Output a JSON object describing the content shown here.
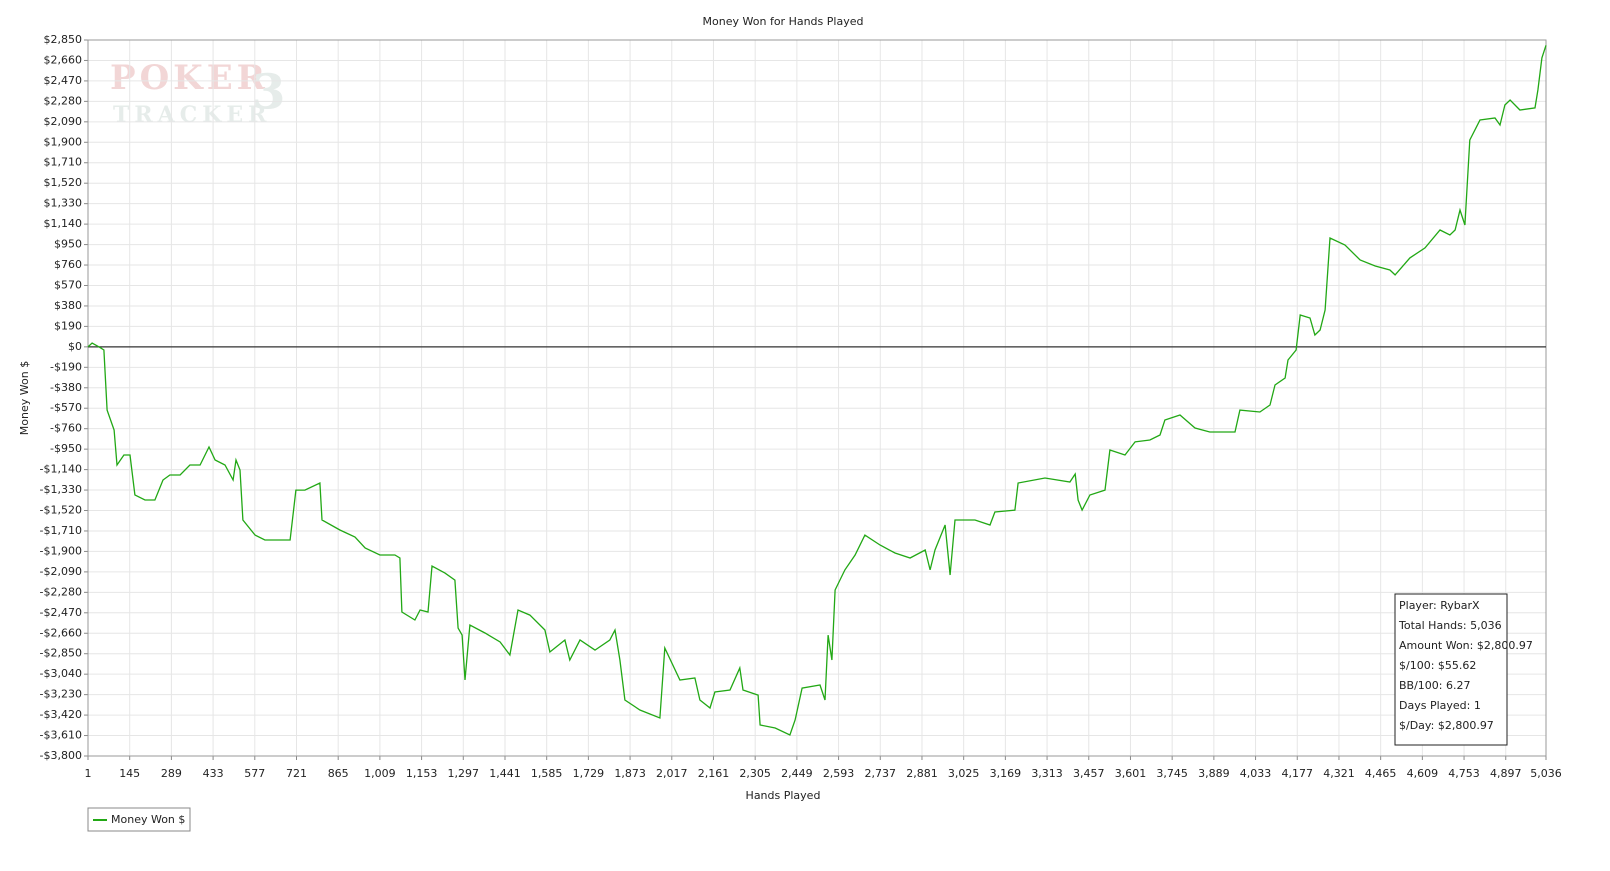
{
  "chart_data": {
    "type": "line",
    "title": "Money Won for Hands Played",
    "x_label": "Hands Played",
    "y_label": "Money Won $",
    "watermark": [
      "POKER",
      "TRACKER",
      "3"
    ],
    "grid": true,
    "legend": "bottom-left",
    "stats": [
      "Player: RybarX",
      "Total Hands: 5,036",
      "Amount Won: $2,800.97",
      "$/100: $55.62",
      "BB/100: 6.27",
      "Days Played: 1",
      "$/Day: $2,800.97"
    ],
    "xlim": [
      1,
      5036
    ],
    "ylim": [
      -3800,
      2850
    ],
    "xticks": [
      1,
      145,
      289,
      433,
      577,
      721,
      865,
      {
        "value": 1009,
        "label": "1,009"
      },
      {
        "value": 1153,
        "label": "1,153"
      },
      {
        "value": 1297,
        "label": "1,297"
      },
      {
        "value": 1441,
        "label": "1,441"
      },
      {
        "value": 1585,
        "label": "1,585"
      },
      {
        "value": 1729,
        "label": "1,729"
      },
      {
        "value": 1873,
        "label": "1,873"
      },
      {
        "value": 2017,
        "label": "2,017"
      },
      {
        "value": 2161,
        "label": "2,161"
      },
      {
        "value": 2305,
        "label": "2,305"
      },
      {
        "value": 2449,
        "label": "2,449"
      },
      {
        "value": 2593,
        "label": "2,593"
      },
      {
        "value": 2737,
        "label": "2,737"
      },
      {
        "value": 2881,
        "label": "2,881"
      },
      {
        "value": 3025,
        "label": "3,025"
      },
      {
        "value": 3169,
        "label": "3,169"
      },
      {
        "value": 3313,
        "label": "3,313"
      },
      {
        "value": 3457,
        "label": "3,457"
      },
      {
        "value": 3601,
        "label": "3,601"
      },
      {
        "value": 3745,
        "label": "3,745"
      },
      {
        "value": 3889,
        "label": "3,889"
      },
      {
        "value": 4033,
        "label": "4,033"
      },
      {
        "value": 4177,
        "label": "4,177"
      },
      {
        "value": 4321,
        "label": "4,321"
      },
      {
        "value": 4465,
        "label": "4,465"
      },
      {
        "value": 4609,
        "label": "4,609"
      },
      {
        "value": 4753,
        "label": "4,753"
      },
      {
        "value": 4897,
        "label": "4,897"
      },
      {
        "value": 5036,
        "label": "5,036"
      }
    ],
    "yticks": [
      {
        "value": 2850,
        "label": "$2,850"
      },
      {
        "value": 2660,
        "label": "$2,660"
      },
      {
        "value": 2470,
        "label": "$2,470"
      },
      {
        "value": 2280,
        "label": "$2,280"
      },
      {
        "value": 2090,
        "label": "$2,090"
      },
      {
        "value": 1900,
        "label": "$1,900"
      },
      {
        "value": 1710,
        "label": "$1,710"
      },
      {
        "value": 1520,
        "label": "$1,520"
      },
      {
        "value": 1330,
        "label": "$1,330"
      },
      {
        "value": 1140,
        "label": "$1,140"
      },
      {
        "value": 950,
        "label": "$950"
      },
      {
        "value": 760,
        "label": "$760"
      },
      {
        "value": 570,
        "label": "$570"
      },
      {
        "value": 380,
        "label": "$380"
      },
      {
        "value": 190,
        "label": "$190"
      },
      {
        "value": 0,
        "label": "$0"
      },
      {
        "value": -190,
        "label": "-$190"
      },
      {
        "value": -380,
        "label": "-$380"
      },
      {
        "value": -570,
        "label": "-$570"
      },
      {
        "value": -760,
        "label": "-$760"
      },
      {
        "value": -950,
        "label": "-$950"
      },
      {
        "value": -1140,
        "label": "-$1,140"
      },
      {
        "value": -1330,
        "label": "-$1,330"
      },
      {
        "value": -1520,
        "label": "-$1,520"
      },
      {
        "value": -1710,
        "label": "-$1,710"
      },
      {
        "value": -1900,
        "label": "-$1,900"
      },
      {
        "value": -2090,
        "label": "-$2,090"
      },
      {
        "value": -2280,
        "label": "-$2,280"
      },
      {
        "value": -2470,
        "label": "-$2,470"
      },
      {
        "value": -2660,
        "label": "-$2,660"
      },
      {
        "value": -2850,
        "label": "-$2,850"
      },
      {
        "value": -3040,
        "label": "-$3,040"
      },
      {
        "value": -3230,
        "label": "-$3,230"
      },
      {
        "value": -3420,
        "label": "-$3,420"
      },
      {
        "value": -3610,
        "label": "-$3,610"
      },
      {
        "value": -3800,
        "label": "-$3,800"
      }
    ],
    "x": [
      1,
      15,
      42,
      56,
      67,
      91,
      101,
      125,
      146,
      163,
      198,
      232,
      260,
      284,
      319,
      353,
      388,
      419,
      440,
      474,
      502,
      512,
      526,
      536,
      578,
      612,
      664,
      699,
      719,
      750,
      802,
      809,
      871,
      923,
      958,
      1009,
      1061,
      1078,
      1085,
      1130,
      1148,
      1175,
      1189,
      1234,
      1268,
      1279,
      1293,
      1303,
      1320,
      1372,
      1424,
      1458,
      1486,
      1527,
      1579,
      1596,
      1648,
      1665,
      1700,
      1752,
      1803,
      1821,
      1838,
      1855,
      1907,
      1976,
      1993,
      2045,
      2097,
      2114,
      2149,
      2166,
      2218,
      2252,
      2263,
      2315,
      2322,
      2374,
      2425,
      2443,
      2467,
      2529,
      2546,
      2557,
      2570,
      2581,
      2615,
      2650,
      2684,
      2736,
      2788,
      2840,
      2892,
      2909,
      2926,
      2961,
      2978,
      2995,
      3064,
      3116,
      3133,
      3202,
      3213,
      3306,
      3392,
      3410,
      3420,
      3434,
      3461,
      3513,
      3530,
      3582,
      3617,
      3668,
      3703,
      3720,
      3772,
      3824,
      3875,
      3962,
      3979,
      4048,
      4083,
      4100,
      4135,
      4145,
      4173,
      4187,
      4221,
      4238,
      4256,
      4273,
      4290,
      4342,
      4394,
      4446,
      4497,
      4515,
      4566,
      4618,
      4670,
      4704,
      4722,
      4739,
      4756,
      4773,
      4808,
      4860,
      4877,
      4894,
      4912,
      4946,
      4998,
      5008,
      5022,
      5036
    ],
    "series": [
      {
        "name": "Money Won $",
        "color": "#22a815",
        "values": [
          0,
          36,
          -5,
          -29,
          -587,
          -772,
          -1097,
          -1004,
          -1004,
          -1376,
          -1422,
          -1422,
          -1237,
          -1190,
          -1190,
          -1097,
          -1097,
          -930,
          -1051,
          -1097,
          -1237,
          -1051,
          -1144,
          -1608,
          -1748,
          -1794,
          -1794,
          -1794,
          -1330,
          -1330,
          -1264,
          -1608,
          -1701,
          -1766,
          -1868,
          -1933,
          -1933,
          -1961,
          -2463,
          -2537,
          -2444,
          -2463,
          -2036,
          -2101,
          -2166,
          -2612,
          -2677,
          -3094,
          -2583,
          -2658,
          -2741,
          -2862,
          -2444,
          -2491,
          -2630,
          -2834,
          -2723,
          -2908,
          -2723,
          -2816,
          -2723,
          -2630,
          -2908,
          -3280,
          -3373,
          -3447,
          -2797,
          -3094,
          -3076,
          -3280,
          -3354,
          -3206,
          -3187,
          -2983,
          -3187,
          -3234,
          -3512,
          -3540,
          -3605,
          -3466,
          -3169,
          -3141,
          -3280,
          -2677,
          -2908,
          -2258,
          -2072,
          -1933,
          -1748,
          -1840,
          -1915,
          -1961,
          -1887,
          -2072,
          -1887,
          -1655,
          -2119,
          -1608,
          -1608,
          -1655,
          -1534,
          -1516,
          -1264,
          -1218,
          -1255,
          -1181,
          -1423,
          -1516,
          -1376,
          -1330,
          -958,
          -1004,
          -883,
          -865,
          -819,
          -679,
          -633,
          -754,
          -791,
          -791,
          -587,
          -605,
          -540,
          -354,
          -289,
          -122,
          -29,
          296,
          268,
          110,
          157,
          342,
          1011,
          946,
          807,
          751,
          714,
          668,
          826,
          919,
          1085,
          1039,
          1085,
          1271,
          1132,
          1921,
          2107,
          2126,
          2061,
          2246,
          2293,
          2200,
          2219,
          2386,
          2684,
          2801
        ]
      }
    ]
  }
}
